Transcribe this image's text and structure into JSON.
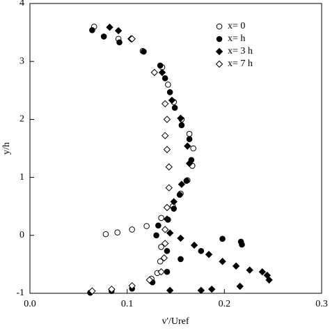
{
  "chart_data": {
    "type": "scatter",
    "xlabel": "v'/Uref",
    "ylabel": "y/h",
    "xlim": [
      0,
      0.3
    ],
    "ylim": [
      -1,
      4
    ],
    "xticks": [
      {
        "value": 0,
        "label": "0.0"
      },
      0.1,
      0.2,
      0.3
    ],
    "yticks": [
      -1,
      0,
      1,
      2,
      3,
      4
    ],
    "legend": "upper right",
    "series": [
      {
        "name": "x= 0",
        "color": "#000000",
        "marker": "circle",
        "filled": false,
        "x": [
          0.066,
          0.091,
          0.116,
          0.136,
          0.142,
          0.148,
          0.156,
          0.164,
          0.168,
          0.167,
          0.162,
          0.155,
          0.147,
          0.135,
          0.12,
          0.105,
          0.09,
          0.078,
          0.135,
          0.134,
          0.131,
          0.125
        ],
        "y": [
          3.6,
          3.39,
          3.18,
          2.9,
          2.6,
          2.3,
          2.0,
          1.75,
          1.5,
          1.2,
          0.95,
          0.72,
          0.5,
          0.3,
          0.16,
          0.1,
          0.05,
          0.02,
          -0.2,
          -0.45,
          -0.65,
          -0.75
        ]
      },
      {
        "name": "x= h",
        "color": "#000000",
        "marker": "circle",
        "filled": true,
        "x": [
          0.064,
          0.076,
          0.092,
          0.117,
          0.134,
          0.139,
          0.144,
          0.149,
          0.156,
          0.164,
          0.166,
          0.161,
          0.154,
          0.148,
          0.142,
          0.132,
          0.13,
          0.141,
          0.155,
          0.176,
          0.198,
          0.217,
          0.218,
          0.141,
          0.126,
          0.105,
          0.084,
          0.062
        ],
        "y": [
          3.54,
          3.43,
          3.33,
          3.17,
          2.93,
          2.71,
          2.47,
          2.2,
          1.9,
          1.66,
          1.3,
          0.94,
          0.7,
          0.46,
          0.27,
          0.17,
          0.0,
          -0.27,
          -0.41,
          -0.27,
          -0.06,
          -0.11,
          -0.16,
          -0.63,
          -0.81,
          -0.92,
          -0.96,
          -0.99
        ]
      },
      {
        "name": "x= 3 h",
        "color": "#000000",
        "marker": "diamond",
        "filled": true,
        "x": [
          0.082,
          0.091,
          0.104,
          0.136,
          0.146,
          0.155,
          0.162,
          0.164,
          0.156,
          0.148,
          0.141,
          0.144,
          0.155,
          0.169,
          0.184,
          0.198,
          0.212,
          0.226,
          0.239,
          0.244,
          0.246,
          0.144,
          0.176,
          0.187,
          0.216
        ],
        "y": [
          3.59,
          3.53,
          3.39,
          2.81,
          2.33,
          2.02,
          1.54,
          1.24,
          0.88,
          0.58,
          0.28,
          0.04,
          -0.05,
          -0.17,
          -0.33,
          -0.45,
          -0.53,
          -0.6,
          -0.63,
          -0.69,
          -0.77,
          -0.95,
          -0.95,
          -0.93,
          -0.88
        ]
      },
      {
        "name": "x= 7 h",
        "color": "#000000",
        "marker": "diamond",
        "filled": false,
        "x": [
          0.105,
          0.128,
          0.139,
          0.141,
          0.139,
          0.141,
          0.143,
          0.143,
          0.141,
          0.139,
          0.139,
          0.138,
          0.135,
          0.123,
          0.105,
          0.084,
          0.064
        ],
        "y": [
          3.39,
          2.81,
          2.27,
          2.0,
          1.72,
          1.48,
          1.18,
          0.82,
          0.48,
          0.1,
          -0.14,
          -0.39,
          -0.63,
          -0.77,
          -0.87,
          -0.93,
          -0.96
        ]
      }
    ]
  }
}
